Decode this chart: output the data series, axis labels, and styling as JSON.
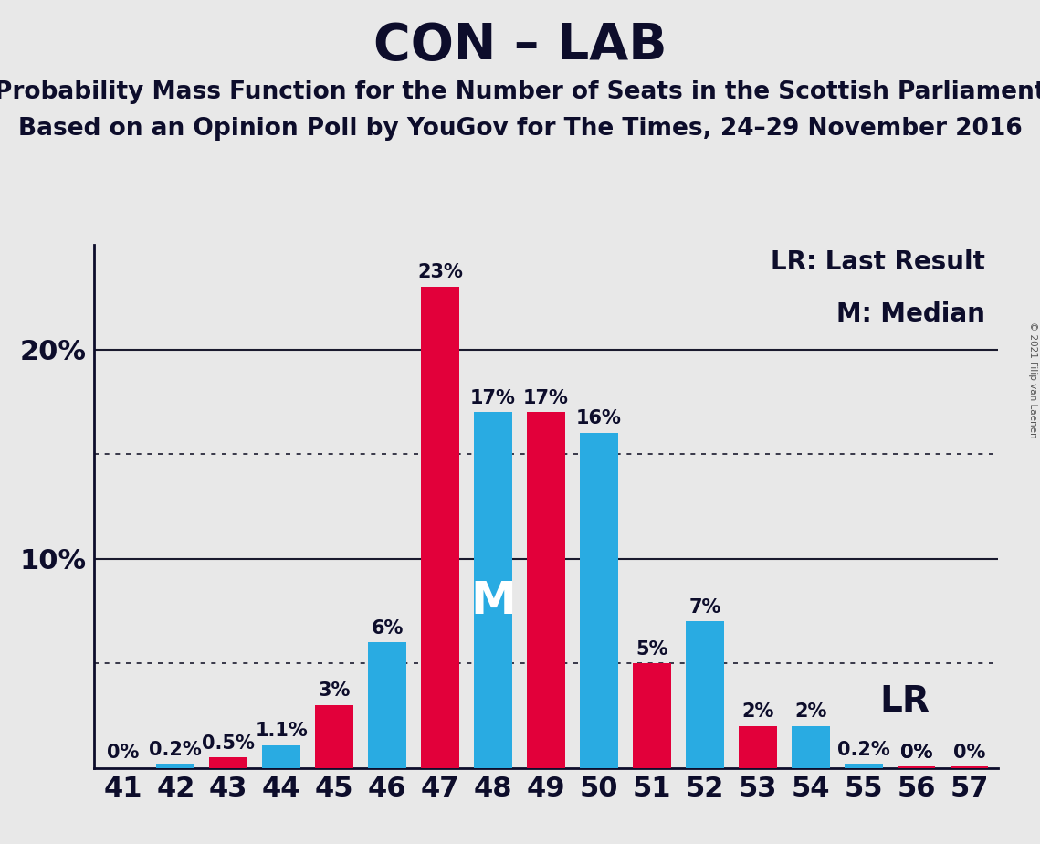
{
  "title": "CON – LAB",
  "subtitle1": "Probability Mass Function for the Number of Seats in the Scottish Parliament",
  "subtitle2": "Based on an Opinion Poll by YouGov for The Times, 24–29 November 2016",
  "copyright": "© 2021 Filip van Laenen",
  "seats": [
    41,
    42,
    43,
    44,
    45,
    46,
    47,
    48,
    49,
    50,
    51,
    52,
    53,
    54,
    55,
    56,
    57
  ],
  "blue_values": [
    0.0,
    0.2,
    0.0,
    1.1,
    0.0,
    6.0,
    0.0,
    17.0,
    0.0,
    16.0,
    0.0,
    7.0,
    0.0,
    2.0,
    0.2,
    0.0,
    0.0
  ],
  "red_values": [
    0.0,
    0.0,
    0.5,
    0.0,
    3.0,
    0.0,
    23.0,
    0.0,
    17.0,
    0.0,
    5.0,
    0.0,
    2.0,
    0.0,
    0.0,
    0.06,
    0.06
  ],
  "blue_labels": [
    "0%",
    "0.2%",
    "",
    "1.1%",
    "",
    "6%",
    "",
    "17%",
    "",
    "16%",
    "",
    "7%",
    "",
    "2%",
    "0.2%",
    "0%",
    ""
  ],
  "red_labels": [
    "",
    "",
    "0.5%",
    "",
    "3%",
    "",
    "23%",
    "",
    "17%",
    "",
    "5%",
    "",
    "2%",
    "",
    "",
    "0%",
    "0%"
  ],
  "blue_color": "#29ABE2",
  "red_color": "#E2003A",
  "background_color": "#E8E8E8",
  "plot_bg_color": "#E8E8E8",
  "ylim": [
    0,
    25
  ],
  "solid_gridlines": [
    10,
    20
  ],
  "dotted_gridlines": [
    5,
    15
  ],
  "title_fontsize": 40,
  "subtitle_fontsize": 19,
  "label_fontsize": 15,
  "tick_fontsize": 22,
  "annotation_fontsize": 20,
  "lr_annotation_fontsize": 28
}
